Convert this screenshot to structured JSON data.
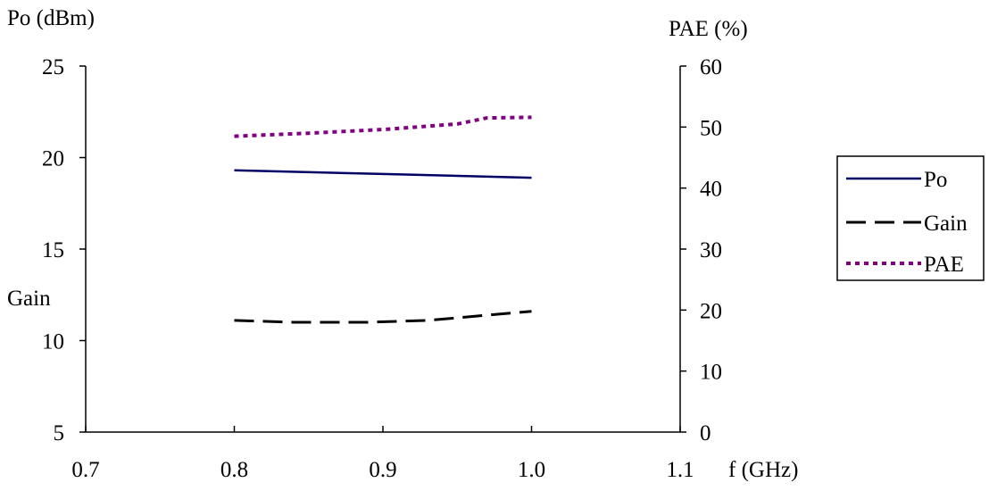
{
  "chart_data": {
    "type": "line",
    "x": [
      0.8,
      0.9,
      1.0
    ],
    "x_ticks": [
      "0.7",
      "0.8",
      "0.9",
      "1.0",
      "1.1"
    ],
    "xlim": [
      0.7,
      1.1
    ],
    "xlabel": "f (GHz)",
    "y_left": {
      "label": "Po (dBm)",
      "secondary_label": "Gain",
      "lim": [
        5,
        25
      ],
      "ticks": [
        "5",
        "10",
        "15",
        "20",
        "25"
      ]
    },
    "y_right": {
      "label": "PAE (%)",
      "lim": [
        0,
        60
      ],
      "ticks": [
        "0",
        "10",
        "20",
        "30",
        "40",
        "50",
        "60"
      ]
    },
    "series": [
      {
        "name": "Po",
        "axis": "left",
        "points": [
          [
            0.8,
            19.3
          ],
          [
            0.9,
            19.1
          ],
          [
            1.0,
            18.9
          ]
        ],
        "color": "#000066",
        "style": "solid"
      },
      {
        "name": "Gain",
        "axis": "left",
        "points": [
          [
            0.8,
            11.1
          ],
          [
            0.84,
            11.0
          ],
          [
            0.89,
            11.0
          ],
          [
            0.93,
            11.1
          ],
          [
            1.0,
            11.6
          ]
        ],
        "color": "#000000",
        "style": "dashed"
      },
      {
        "name": "PAE",
        "axis": "right",
        "points": [
          [
            0.8,
            48.5
          ],
          [
            0.85,
            49.0
          ],
          [
            0.9,
            49.6
          ],
          [
            0.95,
            50.5
          ],
          [
            0.97,
            51.5
          ],
          [
            1.0,
            51.6
          ]
        ],
        "color": "#800080",
        "style": "dotted"
      }
    ],
    "grid": false,
    "legend_position": "right"
  }
}
